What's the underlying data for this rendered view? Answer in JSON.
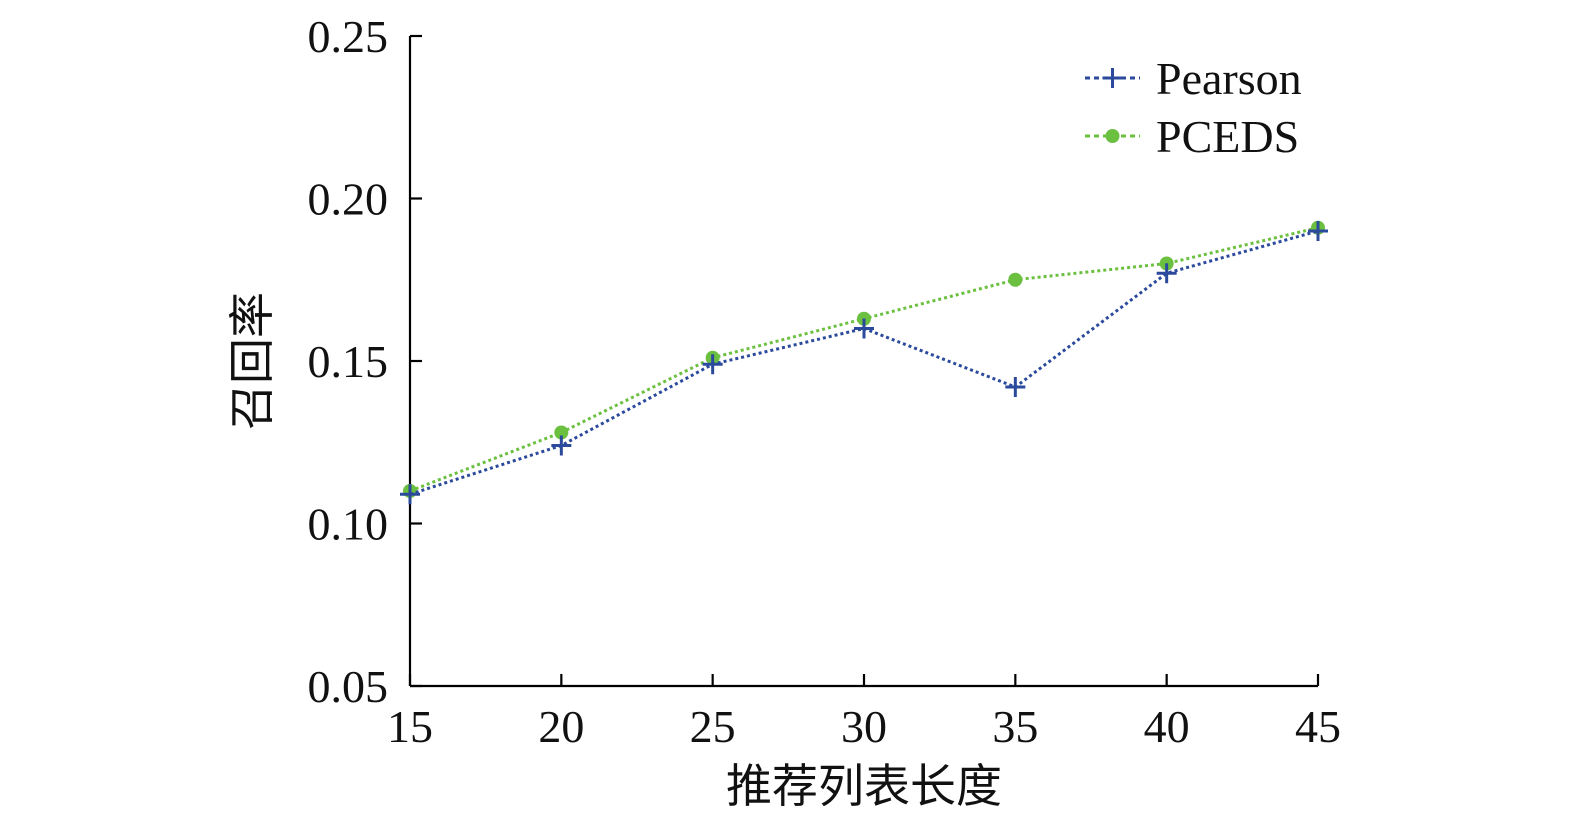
{
  "chart_data": {
    "type": "line",
    "x": [
      15,
      20,
      25,
      30,
      35,
      40,
      45
    ],
    "xlabel": "推荐列表长度",
    "ylabel": "召回率",
    "xlim": [
      15,
      45
    ],
    "ylim": [
      0.05,
      0.25
    ],
    "xticks": [
      "15",
      "20",
      "25",
      "30",
      "35",
      "40",
      "45"
    ],
    "yticks": [
      "0.05",
      "0.10",
      "0.15",
      "0.20",
      "0.25"
    ],
    "grid": false,
    "legend_position": "top-right",
    "series": [
      {
        "name": "Pearson",
        "values": [
          0.109,
          0.124,
          0.149,
          0.16,
          0.142,
          0.177,
          0.19
        ],
        "color": "#2b4a9c",
        "marker": "plus",
        "line_style": "dotted"
      },
      {
        "name": "PCEDS",
        "values": [
          0.11,
          0.128,
          0.151,
          0.163,
          0.175,
          0.18,
          0.191
        ],
        "color": "#6cc040",
        "marker": "circle",
        "line_style": "dotted"
      }
    ]
  }
}
